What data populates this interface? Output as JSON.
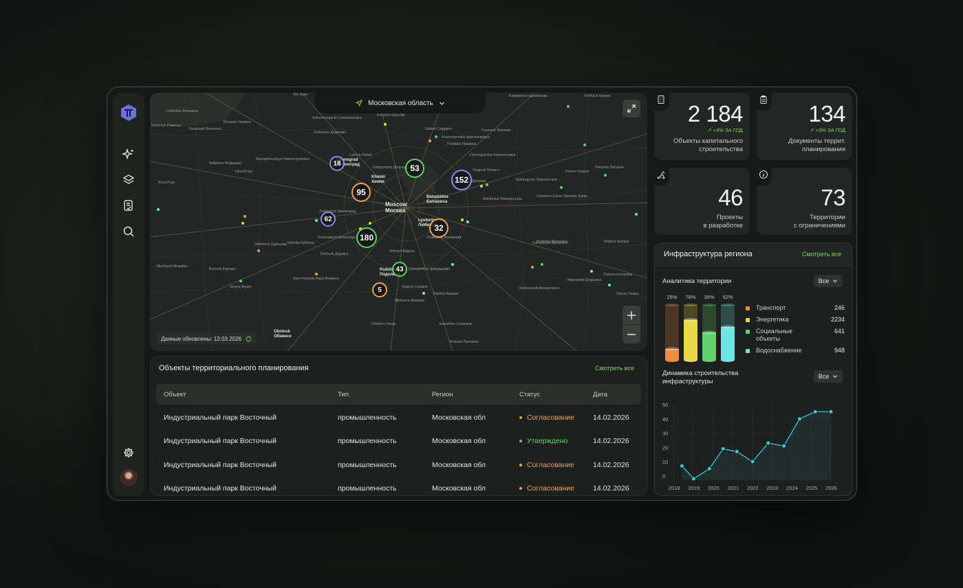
{
  "map": {
    "region_label": "Московская область",
    "updated_label": "Данные обновлены: 12.03.2026",
    "clusters": [
      {
        "label": "18",
        "color": "#8a8cf0"
      },
      {
        "label": "53",
        "color": "#5fd36a"
      },
      {
        "label": "152",
        "color": "#8a8cf0"
      },
      {
        "label": "95",
        "color": "#f0a25a"
      },
      {
        "label": "62",
        "color": "#8a8cf0"
      },
      {
        "label": "32",
        "color": "#f0a25a"
      },
      {
        "label": "180",
        "color": "#5fd36a"
      },
      {
        "label": "43",
        "color": "#5fd36a"
      },
      {
        "label": "5",
        "color": "#f0a25a"
      }
    ],
    "city_labels": [
      {
        "en": "Moscow",
        "ru": "Москва"
      },
      {
        "en": "Khimki",
        "ru": "Химки"
      },
      {
        "en": "Balashikha",
        "ru": "Балашиха"
      },
      {
        "en": "Lyubertsy",
        "ru": "Люберцы"
      },
      {
        "en": "Podolsk",
        "ru": "Подольск"
      },
      {
        "en": "Obninsk",
        "ru": "Обнинск"
      },
      {
        "en": "Zelenograd",
        "ru": "Зеленоград"
      }
    ],
    "place_labels": [
      "Lotoshino Лотошино",
      "Ramenye Раменье",
      "Yaropolets Ярополец",
      "Teryaevo Терявео",
      "Solnechnogorsk Солнечногорск",
      "Dedenevo Деденево",
      "Klin Клин",
      "Sofrino Софрино",
      "Krasnozavodsk Краснозаводск",
      "Fryanovo Фряново",
      "Karabanovo Карабаново",
      "Kirzhach Киржач",
      "Petushki Петушки",
      "Chernogolovka Черноголовка",
      "Noginsk Ногинск",
      "Elektrostal Электросталь",
      "Elektrogorsk Электрогорск",
      "Pokrov Покров",
      "Orekhovo-Zuevo Орехово-Зуево",
      "Shchyolkovo Щёлково",
      "Lobnya Лобня",
      "Dolgoprudny Долгопрудный",
      "Istra Истра",
      "Nefedovo Нефедово",
      "Novopetrovskoye Новопетровское",
      "Ruza Руза",
      "Zvenigorod Звенигород",
      "Kubinka Кубинка",
      "Odintsovo Одинцово",
      "Krasnogorsk Красногорск",
      "Vidnoye Видное",
      "Domodedovo Домодедово",
      "Bronnitsy Бронницы",
      "Zhukovsky Жуковский",
      "Kurovskoye Куровское",
      "Shatura Шатура",
      "Yegoryevsk Егорьевск",
      "Voskresensk Воскресенск",
      "Kolomna Коломна",
      "Ozyory Озёры",
      "Chekhov Чехов",
      "Serpukhov Серпухов",
      "Protvino Протвино",
      "Naro-Fominsk Наро-Фоминск",
      "Borovsk Боровск",
      "Vereya Верея",
      "Mozhaysk Можайск",
      "Kashira Кашира",
      "Stupino Ступино",
      "Mikhnevo Михнево",
      "Dedovsk Дедовск",
      "Pushkino Пушкино",
      "Korolyov Королёв"
    ]
  },
  "table": {
    "title": "Объекты территориального планирования",
    "see_all": "Смотреть все",
    "columns": [
      "Объект",
      "Тип",
      "Регион",
      "Статус",
      "Дата"
    ],
    "rows": [
      {
        "object": "Индустриальный парк Восточный",
        "type": "промышленность",
        "region": "Московская обл",
        "status": "Согласование",
        "status_color": "#f0a25a",
        "date": "14.02.2026"
      },
      {
        "object": "Индустриальный парк Восточный",
        "type": "промышленность",
        "region": "Московская обл",
        "status": "Утверждено",
        "status_color": "#5fd36a",
        "date": "14.02.2026"
      },
      {
        "object": "Индустриальный парк Восточный",
        "type": "промышленность",
        "region": "Московская обл",
        "status": "Согласование",
        "status_color": "#f0a25a",
        "date": "14.02.2026"
      },
      {
        "object": "Индустриальный парк Восточный",
        "type": "промышленность",
        "region": "Московская обл",
        "status": "Согласование",
        "status_color": "#f0a25a",
        "date": "14.02.2026"
      }
    ]
  },
  "stats": [
    {
      "value": "2 184",
      "trend": "+3% ЗА ГОД",
      "label_line1": "Объекты капитального",
      "label_line2": "строительства",
      "icon": "building-icon"
    },
    {
      "value": "134",
      "trend": "+3% ЗА ГОД",
      "label_line1": "Документы террит.",
      "label_line2": "планирования",
      "icon": "clipboard-icon"
    },
    {
      "value": "46",
      "trend": "",
      "label_line1": "Проекты",
      "label_line2": "в разработке",
      "icon": "crane-icon"
    },
    {
      "value": "73",
      "trend": "",
      "label_line1": "Территории",
      "label_line2": "с ограничениями",
      "icon": "info-icon"
    }
  ],
  "infra": {
    "title": "Инфраструктура региона",
    "see_all": "Смотреть все",
    "analytics_title": "Аналитика территории",
    "dropdown_value": "Все",
    "dynamics_title_line1": "Динамика строительства",
    "dynamics_title_line2": "инфраструктуры",
    "dynamics_dropdown_value": "Все"
  },
  "chart_data": [
    {
      "type": "bar",
      "title": "Аналитика территории",
      "categories": [
        "Транспорт",
        "Энергетика",
        "Социальные объекты",
        "Водоснабжение"
      ],
      "values": [
        246,
        2234,
        641,
        948
      ],
      "percent_labels": [
        "25%",
        "76%",
        "39%",
        "52%"
      ],
      "fill_fraction": [
        0.2,
        0.73,
        0.5,
        0.6
      ],
      "colors": [
        "#f08a3e",
        "#e8d84a",
        "#5fd36a",
        "#6fe3e3"
      ],
      "legend": "right"
    },
    {
      "type": "line",
      "title": "Динамика строительства инфраструктуры",
      "x": [
        2018.4,
        2019,
        2019.8,
        2020.5,
        2021.2,
        2022,
        2022.8,
        2023.6,
        2024.4,
        2025.2,
        2026
      ],
      "y": [
        7,
        -2,
        5,
        19,
        17,
        10,
        23,
        21,
        40,
        45,
        45
      ],
      "x_ticks": [
        "2018",
        "2019",
        "2020",
        "2021",
        "2022",
        "2023",
        "2024",
        "2025",
        "2026"
      ],
      "y_ticks": [
        "0",
        "10",
        "20",
        "30",
        "40",
        "50"
      ],
      "ylim": [
        -3,
        50
      ],
      "xlim": [
        2018,
        2026.7
      ],
      "color": "#3fc7e0",
      "grid": true
    }
  ]
}
